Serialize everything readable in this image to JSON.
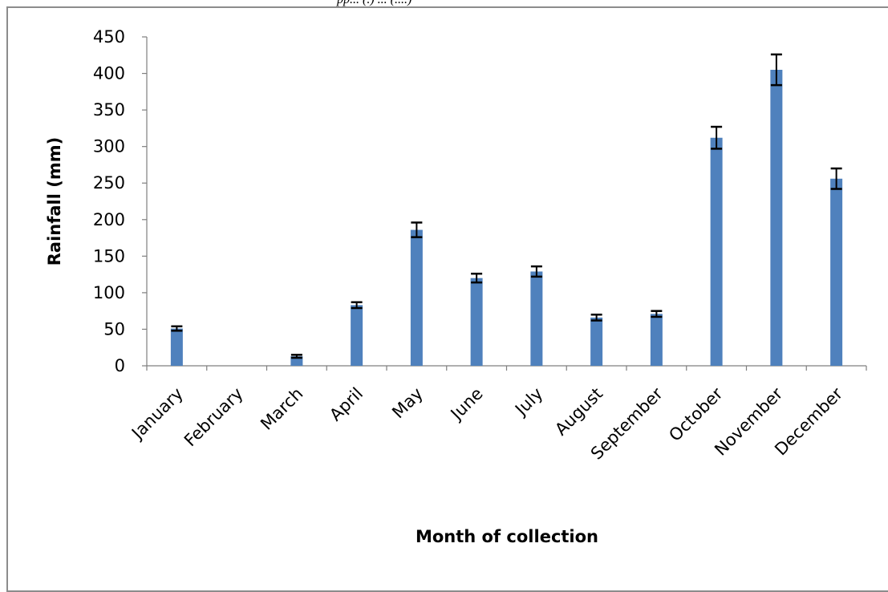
{
  "header": {
    "text": "pp... (.) ... (....)"
  },
  "chart_data": {
    "type": "bar",
    "title": "",
    "xlabel": "Month of collection",
    "ylabel": "Rainfall (mm)",
    "ylim": [
      0,
      450
    ],
    "yticks": [
      0,
      50,
      100,
      150,
      200,
      250,
      300,
      350,
      400,
      450
    ],
    "grid": false,
    "legend": "none",
    "categories": [
      "January",
      "February",
      "March",
      "April",
      "May",
      "June",
      "July",
      "August",
      "September",
      "October",
      "November",
      "December"
    ],
    "values": [
      51,
      0,
      13,
      83,
      186,
      120,
      129,
      66,
      71,
      312,
      405,
      256
    ],
    "error": [
      3,
      0,
      2,
      4,
      10,
      6,
      7,
      4,
      4,
      15,
      21,
      14
    ],
    "bar_color": "#4f81bd",
    "axis_color": "#7f7f7f"
  }
}
